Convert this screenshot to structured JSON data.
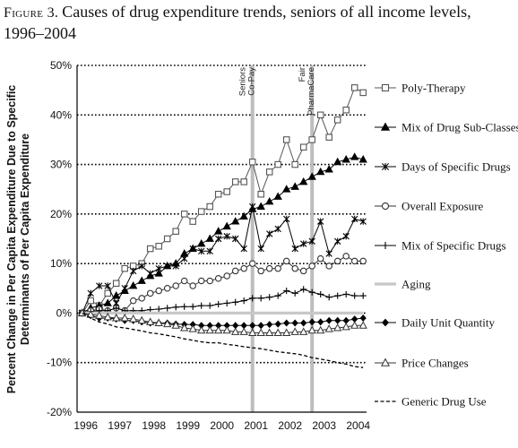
{
  "figure": {
    "label": "Figure 3.",
    "title": "Causes of drug expenditure trends, seniors of all income levels, 1996–2004"
  },
  "chart_data": {
    "type": "line",
    "title": "Causes of drug expenditure trends, seniors of all income levels, 1996–2004",
    "ylabel": "Percent Change in Per Capita Expenditure Due to Specific Determinants of Per Capita Expenditure",
    "ylabel_lines": [
      "Percent Change in Per Capita Expenditure Due to Specific",
      "Determinants of Per Capita Expenditure"
    ],
    "xlabel": "",
    "x_ticks": [
      "1996",
      "1997",
      "1998",
      "1999",
      "2000",
      "2001",
      "2002",
      "2003",
      "2004"
    ],
    "x_range": [
      1995.85,
      2004.35
    ],
    "ylim": [
      -20,
      50
    ],
    "y_ticks": [
      {
        "value": 50,
        "label": "50%"
      },
      {
        "value": 40,
        "label": "40%"
      },
      {
        "value": 30,
        "label": "30%"
      },
      {
        "value": 20,
        "label": "20%"
      },
      {
        "value": 10,
        "label": "10%"
      },
      {
        "value": 0,
        "label": "0%"
      },
      {
        "value": -10,
        "label": "-10%"
      },
      {
        "value": -20,
        "label": "-20%"
      }
    ],
    "gridlines": "dotted horizontal",
    "legend_position": "right",
    "annotations": [
      {
        "x": 2001.0,
        "lines": [
          "Seniors",
          "Co-Pay"
        ]
      },
      {
        "x": 2002.75,
        "lines": [
          "Fair",
          "PharmaCare"
        ]
      }
    ],
    "series": [
      {
        "name": "Poly-Therapy",
        "marker": "square-open",
        "color": "#555555",
        "x": [
          1996.0,
          1996.25,
          1996.5,
          1996.75,
          1997.0,
          1997.25,
          1997.5,
          1997.75,
          1998.0,
          1998.25,
          1998.5,
          1998.75,
          1999.0,
          1999.25,
          1999.5,
          1999.75,
          2000.0,
          2000.25,
          2000.5,
          2000.75,
          2001.0,
          2001.25,
          2001.5,
          2001.75,
          2002.0,
          2002.25,
          2002.5,
          2002.75,
          2003.0,
          2003.25,
          2003.5,
          2003.75,
          2004.0,
          2004.25
        ],
        "y": [
          0,
          2.5,
          1.5,
          4.0,
          6.0,
          9.0,
          9.5,
          10.0,
          13.0,
          13.5,
          15.0,
          16.5,
          20.0,
          18.5,
          20.5,
          21.5,
          24.0,
          24.5,
          26.5,
          26.5,
          30.5,
          24.0,
          28.5,
          30.0,
          35.0,
          30.0,
          33.5,
          35.0,
          40.0,
          35.5,
          39.0,
          41.0,
          45.5,
          44.5
        ]
      },
      {
        "name": "Mix of Drug Sub-Classes",
        "marker": "triangle-filled",
        "color": "#000000",
        "x": [
          1996.0,
          1996.25,
          1996.5,
          1996.75,
          1997.0,
          1997.25,
          1997.5,
          1997.75,
          1998.0,
          1998.25,
          1998.5,
          1998.75,
          1999.0,
          1999.25,
          1999.5,
          1999.75,
          2000.0,
          2000.25,
          2000.5,
          2000.75,
          2001.0,
          2001.25,
          2001.5,
          2001.75,
          2002.0,
          2002.25,
          2002.5,
          2002.75,
          2003.0,
          2003.25,
          2003.5,
          2003.75,
          2004.0,
          2004.25
        ],
        "y": [
          0,
          1.0,
          1.5,
          2.0,
          3.5,
          4.5,
          5.5,
          6.5,
          7.5,
          8.0,
          9.5,
          10.0,
          12.0,
          13.0,
          14.0,
          15.0,
          16.5,
          17.5,
          18.5,
          19.5,
          21.0,
          21.5,
          22.5,
          23.5,
          25.0,
          25.5,
          26.5,
          27.5,
          28.5,
          29.0,
          30.5,
          31.0,
          31.5,
          31.0
        ]
      },
      {
        "name": "Days of Specific Drugs",
        "marker": "asterisk",
        "color": "#000000",
        "x": [
          1996.0,
          1996.25,
          1996.5,
          1996.75,
          1997.0,
          1997.25,
          1997.5,
          1997.75,
          1998.0,
          1998.25,
          1998.5,
          1998.75,
          1999.0,
          1999.25,
          1999.5,
          1999.75,
          2000.0,
          2000.25,
          2000.5,
          2000.75,
          2001.0,
          2001.25,
          2001.5,
          2001.75,
          2002.0,
          2002.25,
          2002.5,
          2002.75,
          2003.0,
          2003.25,
          2003.5,
          2003.75,
          2004.0,
          2004.25
        ],
        "y": [
          0,
          4.0,
          5.5,
          5.5,
          2.0,
          5.0,
          8.5,
          9.5,
          8.0,
          9.0,
          9.5,
          9.5,
          11.0,
          13.0,
          12.5,
          12.5,
          15.0,
          15.5,
          15.0,
          13.0,
          21.5,
          13.0,
          16.0,
          17.0,
          19.0,
          13.0,
          14.0,
          14.5,
          18.5,
          12.0,
          14.5,
          15.5,
          19.0,
          18.5
        ]
      },
      {
        "name": "Overall Exposure",
        "marker": "circle-open",
        "color": "#333333",
        "x": [
          1996.0,
          1996.25,
          1996.5,
          1996.75,
          1997.0,
          1997.25,
          1997.5,
          1997.75,
          1998.0,
          1998.25,
          1998.5,
          1998.75,
          1999.0,
          1999.25,
          1999.5,
          1999.75,
          2000.0,
          2000.25,
          2000.5,
          2000.75,
          2001.0,
          2001.25,
          2001.5,
          2001.75,
          2002.0,
          2002.25,
          2002.5,
          2002.75,
          2003.0,
          2003.25,
          2003.5,
          2003.75,
          2004.0,
          2004.25
        ],
        "y": [
          0,
          0.5,
          0.8,
          0.5,
          1.0,
          0.5,
          2.5,
          3.0,
          4.0,
          4.5,
          5.0,
          5.5,
          6.5,
          5.5,
          6.5,
          6.5,
          7.0,
          7.5,
          8.5,
          9.0,
          10.0,
          8.5,
          9.0,
          9.0,
          10.5,
          9.0,
          8.5,
          9.5,
          11.0,
          9.5,
          10.5,
          11.5,
          10.5,
          10.5
        ]
      },
      {
        "name": "Mix of Specific Drugs",
        "marker": "plus",
        "color": "#000000",
        "x": [
          1996.0,
          1996.25,
          1996.5,
          1996.75,
          1997.0,
          1997.25,
          1997.5,
          1997.75,
          1998.0,
          1998.25,
          1998.5,
          1998.75,
          1999.0,
          1999.25,
          1999.5,
          1999.75,
          2000.0,
          2000.25,
          2000.5,
          2000.75,
          2001.0,
          2001.25,
          2001.5,
          2001.75,
          2002.0,
          2002.25,
          2002.5,
          2002.75,
          2003.0,
          2003.25,
          2003.5,
          2003.75,
          2004.0,
          2004.25
        ],
        "y": [
          0,
          0.3,
          0.5,
          0.5,
          1.0,
          0.5,
          0.5,
          0.5,
          0.7,
          0.8,
          1.0,
          1.2,
          1.3,
          1.3,
          1.5,
          1.5,
          1.8,
          2.0,
          2.2,
          2.5,
          3.0,
          3.0,
          3.2,
          3.5,
          4.5,
          4.0,
          4.8,
          4.2,
          3.8,
          3.2,
          3.5,
          3.8,
          3.5,
          3.5
        ]
      },
      {
        "name": "Aging",
        "marker": "none",
        "line": "thick-gray",
        "color": "#c8c8c8",
        "x": [
          1996.0,
          1997.0,
          1998.0,
          1999.0,
          2000.0,
          2001.0,
          2002.0,
          2003.0,
          2004.0,
          2004.25
        ],
        "y": [
          0,
          0,
          0,
          0,
          0,
          0,
          0,
          0,
          0,
          0
        ]
      },
      {
        "name": "Daily Unit Quantity",
        "marker": "diamond-filled",
        "color": "#000000",
        "x": [
          1996.0,
          1996.25,
          1996.5,
          1996.75,
          1997.0,
          1997.25,
          1997.5,
          1997.75,
          1998.0,
          1998.25,
          1998.5,
          1998.75,
          1999.0,
          1999.25,
          1999.5,
          1999.75,
          2000.0,
          2000.25,
          2000.5,
          2000.75,
          2001.0,
          2001.25,
          2001.5,
          2001.75,
          2002.0,
          2002.25,
          2002.5,
          2002.75,
          2003.0,
          2003.25,
          2003.5,
          2003.75,
          2004.0,
          2004.25
        ],
        "y": [
          0,
          -0.5,
          -1.0,
          -1.0,
          -1.2,
          -1.5,
          -1.5,
          -1.8,
          -2.0,
          -2.0,
          -2.0,
          -2.2,
          -2.3,
          -2.3,
          -2.5,
          -2.5,
          -2.5,
          -2.5,
          -2.5,
          -2.5,
          -2.5,
          -2.5,
          -2.3,
          -2.2,
          -2.0,
          -2.0,
          -2.0,
          -1.8,
          -1.8,
          -1.5,
          -1.5,
          -1.5,
          -1.2,
          -1.0
        ]
      },
      {
        "name": "Price Changes",
        "marker": "triangle-open",
        "color": "#333333",
        "x": [
          1996.0,
          1996.25,
          1996.5,
          1996.75,
          1997.0,
          1997.25,
          1997.5,
          1997.75,
          1998.0,
          1998.25,
          1998.5,
          1998.75,
          1999.0,
          1999.25,
          1999.5,
          1999.75,
          2000.0,
          2000.25,
          2000.5,
          2000.75,
          2001.0,
          2001.25,
          2001.5,
          2001.75,
          2002.0,
          2002.25,
          2002.5,
          2002.75,
          2003.0,
          2003.25,
          2003.5,
          2003.75,
          2004.0,
          2004.25
        ],
        "y": [
          0,
          -0.3,
          -0.5,
          -0.8,
          -1.0,
          -1.0,
          -1.2,
          -1.5,
          -1.8,
          -2.0,
          -2.2,
          -2.5,
          -3.0,
          -3.2,
          -3.5,
          -3.5,
          -3.5,
          -3.5,
          -3.8,
          -3.8,
          -4.0,
          -4.0,
          -4.0,
          -4.0,
          -4.0,
          -3.8,
          -3.8,
          -3.5,
          -3.5,
          -3.2,
          -3.0,
          -2.8,
          -2.5,
          -2.5
        ]
      },
      {
        "name": "Generic Drug Use",
        "marker": "dash-line",
        "line": "dashed",
        "color": "#000000",
        "x": [
          1996.0,
          1996.25,
          1996.5,
          1996.75,
          1997.0,
          1997.25,
          1997.5,
          1997.75,
          1998.0,
          1998.25,
          1998.5,
          1998.75,
          1999.0,
          1999.25,
          1999.5,
          1999.75,
          2000.0,
          2000.25,
          2000.5,
          2000.75,
          2001.0,
          2001.25,
          2001.5,
          2001.75,
          2002.0,
          2002.25,
          2002.5,
          2002.75,
          2003.0,
          2003.25,
          2003.5,
          2003.75,
          2004.0,
          2004.25
        ],
        "y": [
          0,
          -1.0,
          -1.8,
          -2.2,
          -2.8,
          -3.0,
          -3.3,
          -3.6,
          -4.0,
          -4.2,
          -4.5,
          -4.8,
          -5.2,
          -5.5,
          -5.8,
          -6.0,
          -6.0,
          -6.3,
          -6.5,
          -6.8,
          -7.0,
          -7.2,
          -7.5,
          -7.8,
          -8.0,
          -8.2,
          -8.5,
          -9.0,
          -9.3,
          -9.6,
          -10.0,
          -10.3,
          -10.8,
          -11.0
        ]
      }
    ]
  }
}
